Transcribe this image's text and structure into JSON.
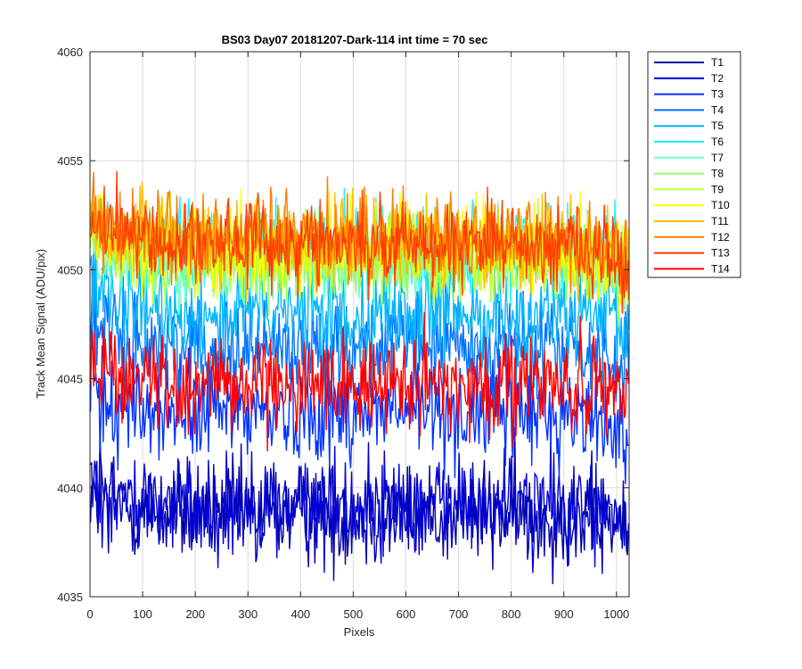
{
  "chart_data": {
    "type": "line",
    "title": "BS03 Day07 20181207-Dark-114 int time = 70 sec",
    "xlabel": "Pixels",
    "ylabel": "Track Mean Signal (ADU/pix)",
    "xlim": [
      0,
      1024
    ],
    "ylim": [
      4035,
      4060
    ],
    "xticks": [
      0,
      100,
      200,
      300,
      400,
      500,
      600,
      700,
      800,
      900,
      1000
    ],
    "yticks": [
      4035,
      4040,
      4045,
      4050,
      4055,
      4060
    ],
    "grid": true,
    "legend_position": "outside-right-top",
    "x": [
      1,
      1024
    ],
    "series": [
      {
        "name": "T1",
        "color": "#0000aa",
        "mean": 4038.8,
        "noise": 1.2
      },
      {
        "name": "T2",
        "color": "#0000d4",
        "mean": 4039.2,
        "noise": 1.2
      },
      {
        "name": "T3",
        "color": "#0033ff",
        "mean": 4043.5,
        "noise": 1.2
      },
      {
        "name": "T4",
        "color": "#0073ff",
        "mean": 4046.5,
        "noise": 1.1
      },
      {
        "name": "T5",
        "color": "#00b4ff",
        "mean": 4048.0,
        "noise": 1.1
      },
      {
        "name": "T6",
        "color": "#22f0ff",
        "mean": 4051.0,
        "noise": 1.0
      },
      {
        "name": "T7",
        "color": "#64ffc8",
        "mean": 4050.5,
        "noise": 1.0
      },
      {
        "name": "T8",
        "color": "#96ff64",
        "mean": 4050.5,
        "noise": 1.0
      },
      {
        "name": "T9",
        "color": "#c8ff32",
        "mean": 4050.8,
        "noise": 1.0
      },
      {
        "name": "T10",
        "color": "#ffff00",
        "mean": 4051.0,
        "noise": 1.0
      },
      {
        "name": "T11",
        "color": "#ffbe00",
        "mean": 4051.3,
        "noise": 1.0
      },
      {
        "name": "T12",
        "color": "#ff7d00",
        "mean": 4051.5,
        "noise": 1.0
      },
      {
        "name": "T13",
        "color": "#ff3c00",
        "mean": 4051.3,
        "noise": 1.0
      },
      {
        "name": "T14",
        "color": "#ff0000",
        "mean": 4044.8,
        "noise": 1.1
      }
    ]
  }
}
